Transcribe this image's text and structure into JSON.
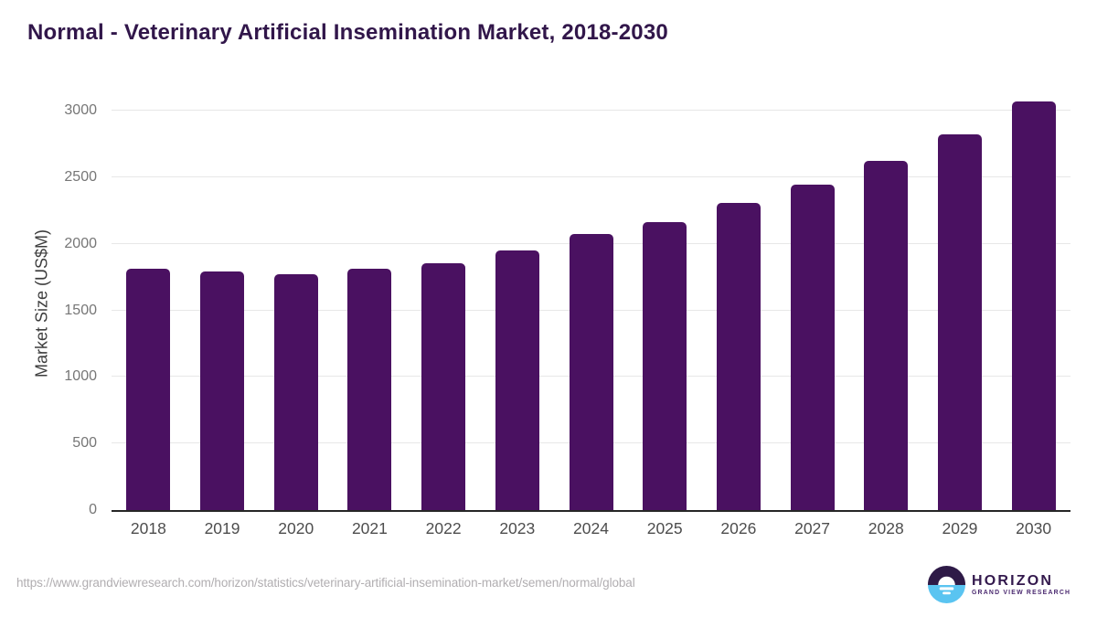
{
  "header": {
    "title": "Normal - Veterinary Artificial Insemination Market, 2018-2030"
  },
  "chart_data": {
    "type": "bar",
    "title": "Normal - Veterinary Artificial Insemination Market, 2018-2030",
    "categories": [
      "2018",
      "2019",
      "2020",
      "2021",
      "2022",
      "2023",
      "2024",
      "2025",
      "2026",
      "2027",
      "2028",
      "2029",
      "2030"
    ],
    "values": [
      1815,
      1790,
      1770,
      1810,
      1855,
      1950,
      2070,
      2165,
      2305,
      2445,
      2620,
      2825,
      3070
    ],
    "xlabel": "",
    "ylabel": "Market Size (US$M)",
    "ylim": [
      0,
      3000
    ],
    "yticks": [
      0,
      500,
      1000,
      1500,
      2000,
      2500,
      3000
    ],
    "grid": "horizontal-only",
    "legend": "none",
    "bar_color": "#4a1161"
  },
  "colors": {
    "title": "#31164a",
    "bar": "#4a1161",
    "axis_line": "#262626",
    "gridline": "#e7e7e7",
    "y_tick_text": "#767676",
    "x_tick_text": "#4d4d4d",
    "url_text": "#b1aeb1",
    "logo_purple": "#2e1a47",
    "logo_blue": "#5ac4f1"
  },
  "footer": {
    "source_url": "https://www.grandviewresearch.com/horizon/statistics/veterinary-artificial-insemination-market/semen/normal/global",
    "logo": {
      "wordmark": "HORIZON",
      "tagline": "GRAND VIEW RESEARCH"
    }
  }
}
